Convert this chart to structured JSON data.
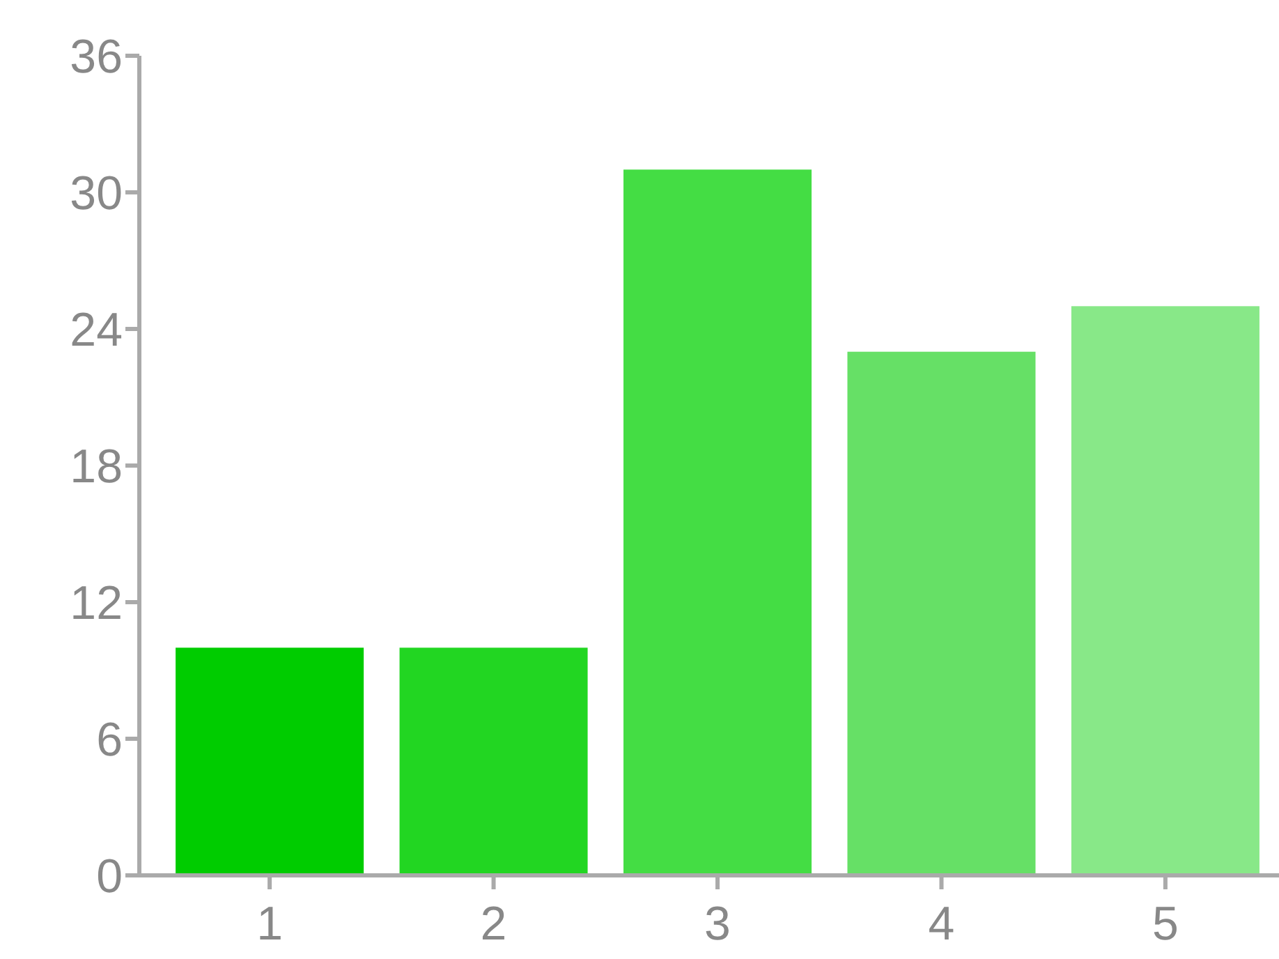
{
  "chart_data": {
    "type": "bar",
    "categories": [
      "1",
      "2",
      "3",
      "4",
      "5"
    ],
    "values": [
      10,
      10,
      31,
      23,
      25
    ],
    "colors": [
      "#00cc00",
      "#22d622",
      "#44dd44",
      "#66e066",
      "#88e888"
    ],
    "ylim": [
      0,
      36
    ],
    "yticks": [
      0,
      6,
      12,
      18,
      24,
      30,
      36
    ],
    "grid": false
  }
}
